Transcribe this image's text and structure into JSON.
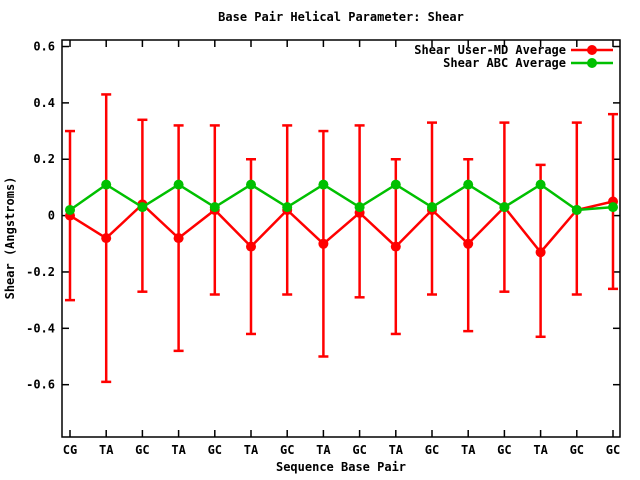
{
  "chart_data": {
    "type": "line",
    "title": "Base Pair Helical Parameter: Shear",
    "xlabel": "Sequence Base Pair",
    "ylabel": "Shear (Angstroms)",
    "grid": false,
    "legend_position": "top-right-inside",
    "ylim": [
      -0.79,
      0.62
    ],
    "yticks": [
      0.6,
      0.4,
      0.2,
      0,
      -0.2,
      -0.4,
      -0.6
    ],
    "ytick_labels": [
      "0.6",
      "0.4",
      "0.2",
      "0",
      "-0.2",
      "-0.4",
      "-0.6"
    ],
    "categories": [
      "CG",
      "TA",
      "GC",
      "TA",
      "GC",
      "TA",
      "GC",
      "TA",
      "GC",
      "TA",
      "GC",
      "TA",
      "GC",
      "TA",
      "GC",
      "GC"
    ],
    "series": [
      {
        "name": "Shear User-MD Average",
        "color": "#ff0000",
        "marker": "filled-circle",
        "style": "yerrorlines",
        "values": [
          0.0,
          -0.08,
          0.04,
          -0.08,
          0.02,
          -0.11,
          0.02,
          -0.1,
          0.01,
          -0.11,
          0.02,
          -0.1,
          0.03,
          -0.13,
          0.02,
          0.05
        ],
        "err_high": [
          0.3,
          0.43,
          0.34,
          0.32,
          0.32,
          0.2,
          0.32,
          0.3,
          0.32,
          0.2,
          0.33,
          0.2,
          0.33,
          0.18,
          0.33,
          0.36
        ],
        "err_low": [
          -0.3,
          -0.59,
          -0.27,
          -0.48,
          -0.28,
          -0.42,
          -0.28,
          -0.5,
          -0.29,
          -0.42,
          -0.28,
          -0.41,
          -0.27,
          -0.43,
          -0.28,
          -0.26
        ]
      },
      {
        "name": "Shear ABC Average",
        "color": "#00c000",
        "marker": "filled-circle",
        "style": "linespoints",
        "values": [
          0.02,
          0.11,
          0.03,
          0.11,
          0.03,
          0.11,
          0.03,
          0.11,
          0.03,
          0.11,
          0.03,
          0.11,
          0.03,
          0.11,
          0.02,
          0.03
        ]
      }
    ]
  }
}
